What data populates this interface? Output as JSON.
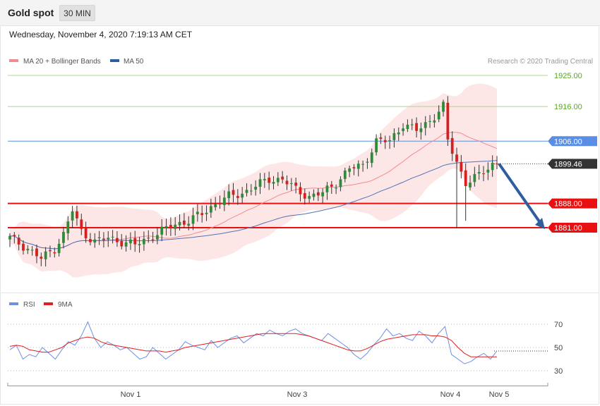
{
  "header": {
    "title": "Gold spot",
    "timeframe": "30 MIN",
    "datetime": "Wednesday, November 4, 2020 7:19:13 AM CET"
  },
  "legend": {
    "ma20_label": "MA 20 + Bollinger Bands",
    "ma50_label": "MA 50",
    "credit": "Research © 2020 Trading Central",
    "rsi_label": "RSI",
    "ma9_label": "9MA"
  },
  "colors": {
    "ma20": "#f28c8c",
    "bands": "#fde2e2",
    "ma50": "#4f73b8",
    "up": "#2e8b3a",
    "down": "#d62020",
    "resistance_green": "#a9d88a",
    "pivot_blue": "#5a8ee6",
    "support_red": "#e81010",
    "current_price_bg": "#333333",
    "rsi": "#6e8fe6",
    "rsi_ma": "#e02020",
    "arrow": "#2f5e9e"
  },
  "chart_data": [
    {
      "type": "candlestick",
      "title": "Gold spot",
      "x_ticks": [
        "Nov 1",
        "Nov 3",
        "Nov 4",
        "Nov 5"
      ],
      "ylim": [
        1862,
        1932
      ],
      "levels": [
        {
          "value": 1925.0,
          "label": "1925.00",
          "kind": "resistance"
        },
        {
          "value": 1916.0,
          "label": "1916.00",
          "kind": "resistance"
        },
        {
          "value": 1906.0,
          "label": "1906.00",
          "kind": "pivot"
        },
        {
          "value": 1899.46,
          "label": "1899.46",
          "kind": "current"
        },
        {
          "value": 1888.0,
          "label": "1888.00",
          "kind": "support"
        },
        {
          "value": 1881.0,
          "label": "1881.00",
          "kind": "support"
        }
      ],
      "close_points": [
        [
          0,
          1878
        ],
        [
          4,
          1875
        ],
        [
          7,
          1872
        ],
        [
          10,
          1875
        ],
        [
          12,
          1879
        ],
        [
          14,
          1886
        ],
        [
          16,
          1880
        ],
        [
          19,
          1877
        ],
        [
          22,
          1878
        ],
        [
          25,
          1877
        ],
        [
          28,
          1876
        ],
        [
          31,
          1878
        ],
        [
          34,
          1880
        ],
        [
          37,
          1882
        ],
        [
          40,
          1883
        ],
        [
          43,
          1885
        ],
        [
          46,
          1888
        ],
        [
          49,
          1890
        ],
        [
          52,
          1891
        ],
        [
          55,
          1893
        ],
        [
          58,
          1895
        ],
        [
          61,
          1895
        ],
        [
          64,
          1892
        ],
        [
          67,
          1890
        ],
        [
          70,
          1891
        ],
        [
          73,
          1894
        ],
        [
          76,
          1898
        ],
        [
          79,
          1899
        ],
        [
          82,
          1906
        ],
        [
          85,
          1906
        ],
        [
          88,
          1911
        ],
        [
          91,
          1909
        ],
        [
          94,
          1912
        ],
        [
          97,
          1916
        ],
        [
          98,
          1906
        ],
        [
          100,
          1900
        ],
        [
          102,
          1894
        ],
        [
          105,
          1896
        ],
        [
          108,
          1899.46
        ]
      ],
      "projection": {
        "from": 1899.46,
        "to": 1881.0
      }
    },
    {
      "type": "line",
      "title": "RSI",
      "yticks": [
        30,
        50,
        70
      ],
      "series": [
        {
          "name": "RSI",
          "values": [
            48,
            52,
            40,
            44,
            42,
            50,
            45,
            40,
            48,
            55,
            52,
            60,
            72,
            58,
            50,
            55,
            52,
            48,
            50,
            45,
            40,
            42,
            50,
            45,
            40,
            44,
            48,
            55,
            52,
            50,
            48,
            56,
            50,
            54,
            58,
            60,
            54,
            58,
            62,
            60,
            65,
            62,
            60,
            64,
            66,
            62,
            60,
            58,
            56,
            62,
            58,
            54,
            50,
            44,
            40,
            45,
            52,
            58,
            66,
            60,
            62,
            58,
            56,
            64,
            60,
            54,
            62,
            68,
            44,
            40,
            36,
            38,
            42,
            45,
            40,
            47
          ]
        },
        {
          "name": "9MA",
          "values": [
            51,
            52,
            51,
            48,
            47,
            46,
            46,
            48,
            50,
            54,
            56,
            58,
            59,
            58,
            55,
            53,
            52,
            51,
            50,
            49,
            48,
            47,
            47,
            47,
            46,
            47,
            48,
            50,
            51,
            52,
            53,
            54,
            55,
            56,
            57,
            58,
            59,
            60,
            61,
            62,
            62,
            62,
            62,
            62,
            62,
            61,
            60,
            58,
            56,
            54,
            52,
            50,
            48,
            47,
            47,
            49,
            52,
            55,
            57,
            58,
            59,
            60,
            61,
            61,
            61,
            60,
            60,
            59,
            56,
            50,
            45,
            42,
            42,
            42,
            42,
            42
          ]
        }
      ]
    }
  ]
}
